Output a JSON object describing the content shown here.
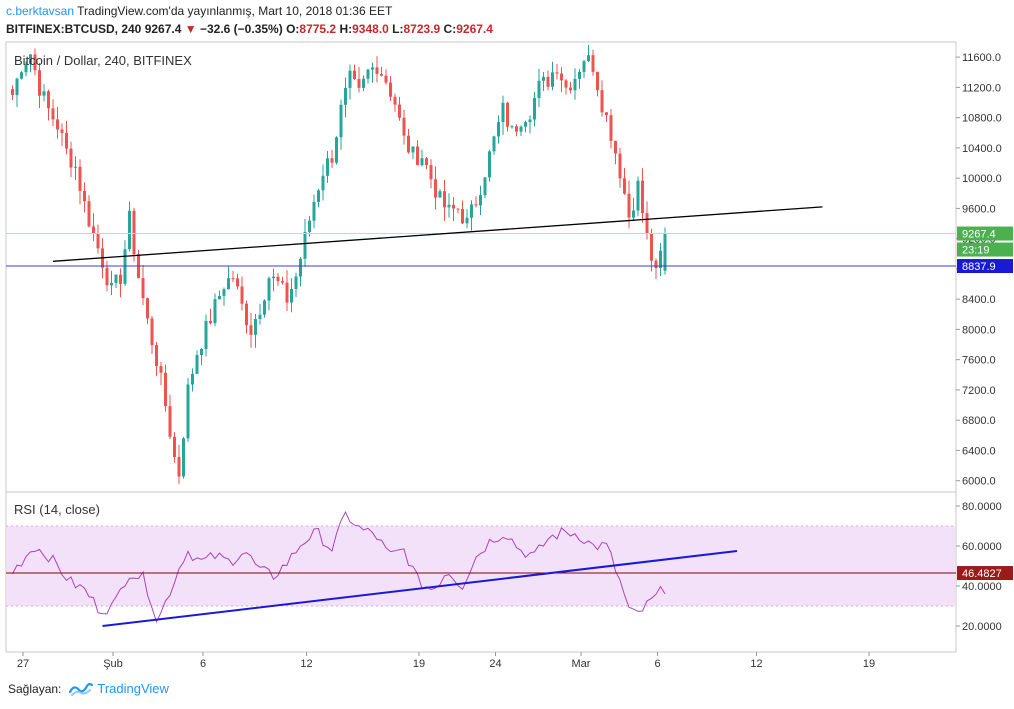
{
  "header": {
    "user": "c.berktavsan",
    "published": "TradingView.com'da yayınlanmış, Mart 10, 2018 01:36 EET",
    "symbol": "BITFINEX:BTCUSD, 240",
    "last": "9267.4",
    "change": "−32.6 (−0.35%)",
    "o_label": "O:",
    "o": "8775.2",
    "h_label": "H:",
    "h": "9348.0",
    "l_label": "L:",
    "l": "8723.9",
    "c_label": "C:",
    "c": "9267.4"
  },
  "main_pane": {
    "legend": "Bitcoin / Dollar, 240, BITFINEX",
    "price_ticks": [
      "11600.0",
      "11200.0",
      "10800.0",
      "10400.0",
      "10000.0",
      "9600.0",
      "9200.0",
      "8800.0",
      "8400.0",
      "8000.0",
      "7600.0",
      "7200.0",
      "6800.0",
      "6400.0",
      "6000.0"
    ],
    "price_tick_values": [
      11600,
      11200,
      10800,
      10400,
      10000,
      9600,
      9200,
      8800,
      8400,
      8000,
      7600,
      7200,
      6800,
      6400,
      6000
    ],
    "last_price_label": "9267.4",
    "countdown_label": "23:19",
    "hline_label": "8837.9",
    "hline_value": 8837.9
  },
  "rsi_pane": {
    "legend": "RSI (14, close)",
    "ticks": [
      "80.0000",
      "60.0000",
      "40.0000",
      "20.0000"
    ],
    "tick_values": [
      80,
      60,
      40,
      20
    ],
    "band_upper": 70,
    "band_lower": 30,
    "hline_label": "46.4827",
    "hline_value": 46.4827
  },
  "time_axis": {
    "labels": [
      "27",
      "Şub",
      "6",
      "12",
      "19",
      "24",
      "Mar",
      "6",
      "12",
      "19"
    ]
  },
  "footer": {
    "shared_by": "Sağlayan:",
    "brand": "TradingView"
  },
  "colors": {
    "up": "#26a69a",
    "down": "#ef5350",
    "trend_main": "#000000",
    "trend_rsi": "#1a1ad6",
    "hline_main": "#3b3bdb",
    "hline_rsi": "#8b0000",
    "rsi_line": "#9c27b0",
    "rsi_band": "#f3e1f9"
  },
  "chart_data": {
    "type": "candlestick",
    "symbol": "BITFINEX:BTCUSD",
    "interval": "240",
    "last_ohlc": {
      "open": 8775.2,
      "high": 9348.0,
      "low": 8723.9,
      "close": 9267.4
    },
    "close_path": [
      [
        0,
        11100
      ],
      [
        2,
        11500
      ],
      [
        4,
        11650
      ],
      [
        6,
        11200
      ],
      [
        8,
        10900
      ],
      [
        10,
        10700
      ],
      [
        12,
        10350
      ],
      [
        14,
        10150
      ],
      [
        16,
        9650
      ],
      [
        18,
        9250
      ],
      [
        20,
        8900
      ],
      [
        22,
        8500
      ],
      [
        24,
        8700
      ],
      [
        26,
        9450
      ],
      [
        28,
        8700
      ],
      [
        30,
        8100
      ],
      [
        32,
        7600
      ],
      [
        34,
        7000
      ],
      [
        36,
        6300
      ],
      [
        37,
        6100
      ],
      [
        39,
        7200
      ],
      [
        41,
        7700
      ],
      [
        43,
        8000
      ],
      [
        45,
        8300
      ],
      [
        47,
        8600
      ],
      [
        49,
        8700
      ],
      [
        51,
        8300
      ],
      [
        53,
        8000
      ],
      [
        55,
        8300
      ],
      [
        57,
        8700
      ],
      [
        59,
        8600
      ],
      [
        61,
        8400
      ],
      [
        63,
        8700
      ],
      [
        65,
        9200
      ],
      [
        67,
        9700
      ],
      [
        69,
        10100
      ],
      [
        71,
        10300
      ],
      [
        73,
        10900
      ],
      [
        75,
        11300
      ],
      [
        77,
        11100
      ],
      [
        79,
        11400
      ],
      [
        81,
        11500
      ],
      [
        83,
        11300
      ],
      [
        85,
        11000
      ],
      [
        87,
        10500
      ],
      [
        89,
        10300
      ],
      [
        91,
        10300
      ],
      [
        93,
        10000
      ],
      [
        95,
        9700
      ],
      [
        97,
        9550
      ],
      [
        99,
        9600
      ],
      [
        101,
        9400
      ],
      [
        103,
        9700
      ],
      [
        105,
        10100
      ],
      [
        107,
        10500
      ],
      [
        109,
        10900
      ],
      [
        111,
        10600
      ],
      [
        113,
        10800
      ],
      [
        115,
        10900
      ],
      [
        117,
        11200
      ],
      [
        119,
        11300
      ],
      [
        121,
        11500
      ],
      [
        123,
        11200
      ],
      [
        125,
        11350
      ],
      [
        127,
        11600
      ],
      [
        129,
        11500
      ],
      [
        131,
        11000
      ],
      [
        133,
        10600
      ],
      [
        135,
        10100
      ],
      [
        137,
        9500
      ],
      [
        139,
        9900
      ],
      [
        141,
        9200
      ],
      [
        143,
        8700
      ],
      [
        145,
        9267
      ]
    ],
    "rsi_path": [
      [
        0,
        47
      ],
      [
        3,
        60
      ],
      [
        5,
        55
      ],
      [
        8,
        42
      ],
      [
        10,
        38
      ],
      [
        12,
        28
      ],
      [
        14,
        30
      ],
      [
        16,
        47
      ],
      [
        18,
        44
      ],
      [
        19,
        35
      ],
      [
        20,
        22
      ],
      [
        22,
        40
      ],
      [
        24,
        58
      ],
      [
        26,
        52
      ],
      [
        28,
        55
      ],
      [
        30,
        52
      ],
      [
        32,
        58
      ],
      [
        34,
        48
      ],
      [
        36,
        45
      ],
      [
        38,
        52
      ],
      [
        40,
        62
      ],
      [
        42,
        67
      ],
      [
        44,
        58
      ],
      [
        46,
        76
      ],
      [
        48,
        68
      ],
      [
        50,
        66
      ],
      [
        52,
        55
      ],
      [
        54,
        58
      ],
      [
        55,
        50
      ],
      [
        56,
        42
      ],
      [
        58,
        38
      ],
      [
        60,
        48
      ],
      [
        62,
        40
      ],
      [
        64,
        55
      ],
      [
        66,
        63
      ],
      [
        68,
        67
      ],
      [
        70,
        58
      ],
      [
        72,
        55
      ],
      [
        74,
        64
      ],
      [
        76,
        67
      ],
      [
        78,
        66
      ],
      [
        80,
        60
      ],
      [
        82,
        60
      ],
      [
        84,
        40
      ],
      [
        85,
        28
      ],
      [
        86,
        25
      ],
      [
        88,
        32
      ],
      [
        90,
        39
      ]
    ],
    "trendlines": [
      {
        "pane": "price",
        "from": [
          9,
          8900
        ],
        "to": [
          180,
          9620
        ]
      },
      {
        "pane": "rsi",
        "from": [
          20,
          20
        ],
        "to": [
          161,
          57.5
        ]
      }
    ],
    "horizontal_lines": [
      {
        "pane": "price",
        "value": 8837.9
      },
      {
        "pane": "price",
        "value": 9267.4
      },
      {
        "pane": "rsi",
        "value": 46.4827
      }
    ],
    "price_range": [
      5850,
      11800
    ],
    "rsi_range": [
      7,
      87
    ],
    "x_labels": [
      "27",
      "Şub",
      "6",
      "12",
      "19",
      "24",
      "Mar",
      "6",
      "12",
      "19"
    ],
    "legend_placement": "top-left"
  }
}
